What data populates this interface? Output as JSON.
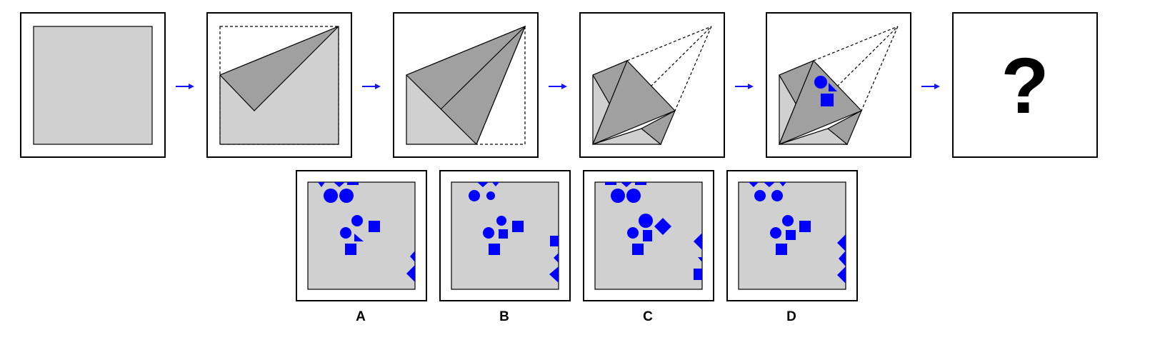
{
  "colors": {
    "paper": "#d0d0d0",
    "fold": "#a0a0a0",
    "outline": "#000000",
    "arrow": "#1515ff",
    "shape": "#0000ff",
    "frame_bg": "#ffffff"
  },
  "steps": [
    {
      "id": "step-1",
      "content": "unfolded-square"
    },
    {
      "id": "step-2",
      "content": "first-fold"
    },
    {
      "id": "step-3",
      "content": "second-fold"
    },
    {
      "id": "step-4",
      "content": "third-fold"
    },
    {
      "id": "step-5",
      "content": "punched-holes"
    },
    {
      "id": "step-6",
      "content": "question"
    }
  ],
  "question_text": "?",
  "options": [
    {
      "label": "A"
    },
    {
      "label": "B"
    },
    {
      "label": "C"
    },
    {
      "label": "D"
    }
  ],
  "hole_shapes": [
    "circle",
    "square",
    "triangle",
    "diamond"
  ]
}
